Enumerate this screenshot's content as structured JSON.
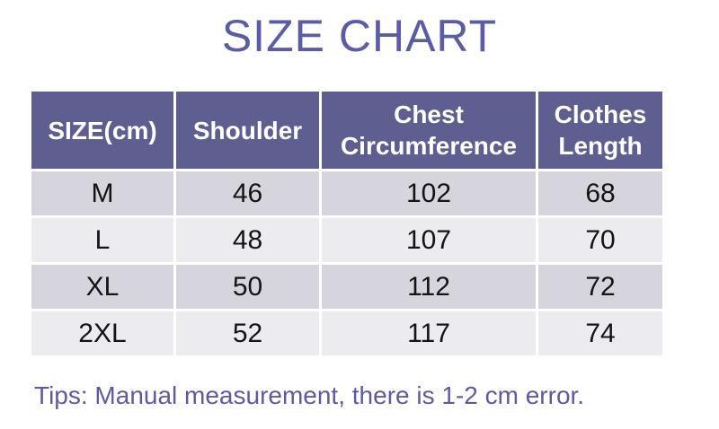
{
  "colors": {
    "title_text": "#5c5ca6",
    "header_bg": "#5e5e90",
    "header_text": "#ffffff",
    "row_odd_bg": "#d6d5dd",
    "row_even_bg": "#ebebf0",
    "data_text": "#141414",
    "tips_text": "#5c5ba0",
    "page_bg": "#ffffff"
  },
  "chart_data": {
    "type": "table",
    "title": "SIZE CHART",
    "columns": [
      "SIZE(cm)",
      "Shoulder",
      "Chest Circumference",
      "Clothes Length"
    ],
    "rows": [
      [
        "M",
        "46",
        "102",
        "68"
      ],
      [
        "L",
        "48",
        "107",
        "70"
      ],
      [
        "XL",
        "50",
        "112",
        "72"
      ],
      [
        "2XL",
        "52",
        "117",
        "74"
      ]
    ],
    "footnote": "Tips: Manual measurement, there is 1-2 cm error.",
    "units": "cm",
    "layout": {
      "grid": false,
      "header_style": "solid-fill",
      "row_striping": "alternating"
    }
  }
}
